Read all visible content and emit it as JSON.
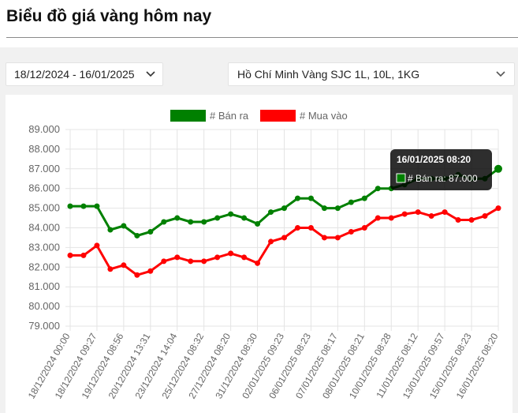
{
  "page": {
    "title": "Biểu đồ giá vàng hôm nay"
  },
  "filters": {
    "date_range": "18/12/2024 - 16/01/2025",
    "product": "Hồ Chí Minh Vàng SJC 1L, 10L, 1KG"
  },
  "chart_data": {
    "type": "line",
    "title": "",
    "xlabel": "",
    "ylabel": "",
    "ylim": [
      79,
      89
    ],
    "y_ticks": [
      "79.000",
      "80.000",
      "81.000",
      "82.000",
      "83.000",
      "84.000",
      "85.000",
      "86.000",
      "87.000",
      "88.000",
      "89.000"
    ],
    "grid": true,
    "legend_position": "top-center",
    "x_tick_labels": [
      "18/12/2024 00:00",
      "18/12/2024 09:27",
      "19/12/2024 08:56",
      "20/12/2024 13:31",
      "23/12/2024 14:04",
      "25/12/2024 08:32",
      "27/12/2024 08:20",
      "31/12/2024 08:30",
      "02/01/2025 09:23",
      "06/01/2025 08:23",
      "07/01/2025 08:17",
      "08/01/2025 08:21",
      "10/01/2025 08:28",
      "11/01/2025 08:12",
      "13/01/2025 09:57",
      "15/01/2025 08:23",
      "16/01/2025 08:20"
    ],
    "series": [
      {
        "name": "# Bán ra",
        "color": "#008000",
        "values": [
          85.1,
          85.1,
          85.1,
          83.9,
          84.1,
          83.6,
          83.8,
          84.3,
          84.5,
          84.3,
          84.3,
          84.5,
          84.7,
          84.5,
          84.2,
          84.8,
          85.0,
          85.5,
          85.5,
          85.0,
          85.0,
          85.3,
          85.5,
          86.0,
          86.0,
          86.2,
          86.5,
          86.5,
          86.5,
          86.7,
          86.5,
          86.5,
          87.0
        ]
      },
      {
        "name": "# Mua vào",
        "color": "#ff0000",
        "values": [
          82.6,
          82.6,
          83.1,
          81.9,
          82.1,
          81.6,
          81.8,
          82.3,
          82.5,
          82.3,
          82.3,
          82.5,
          82.7,
          82.5,
          82.2,
          83.3,
          83.5,
          84.0,
          84.0,
          83.5,
          83.5,
          83.8,
          84.0,
          84.5,
          84.5,
          84.7,
          84.8,
          84.6,
          84.8,
          84.4,
          84.4,
          84.6,
          85.0
        ]
      }
    ],
    "tooltip": {
      "title": "16/01/2025 08:20",
      "label": "# Bán ra: 87.000"
    }
  }
}
